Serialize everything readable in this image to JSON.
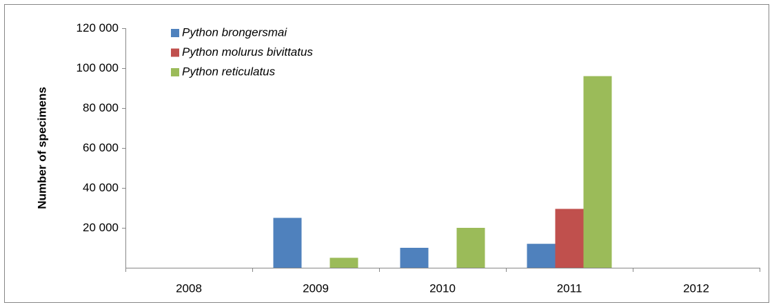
{
  "chart_data": {
    "type": "bar",
    "y_label": "Number of specimens",
    "categories": [
      "2008",
      "2009",
      "2010",
      "2011",
      "2012"
    ],
    "series": [
      {
        "name": "Python brongersmai",
        "color": "#4f81bd",
        "values": [
          0,
          25000,
          10000,
          12000,
          0
        ]
      },
      {
        "name": "Python molurus bivittatus",
        "color": "#c0504d",
        "values": [
          0,
          0,
          0,
          29500,
          0
        ]
      },
      {
        "name": "Python reticulatus",
        "color": "#9bbb59",
        "values": [
          0,
          5000,
          20000,
          96000,
          0
        ]
      }
    ],
    "ylim": [
      0,
      120000
    ],
    "yticks": [
      {
        "value": 20000,
        "label": "20 000"
      },
      {
        "value": 40000,
        "label": "40 000"
      },
      {
        "value": 60000,
        "label": "60 000"
      },
      {
        "value": 80000,
        "label": "80 000"
      },
      {
        "value": 100000,
        "label": "100 000"
      },
      {
        "value": 120000,
        "label": "120 000"
      }
    ],
    "grid": false,
    "legend_position": "top-left"
  }
}
